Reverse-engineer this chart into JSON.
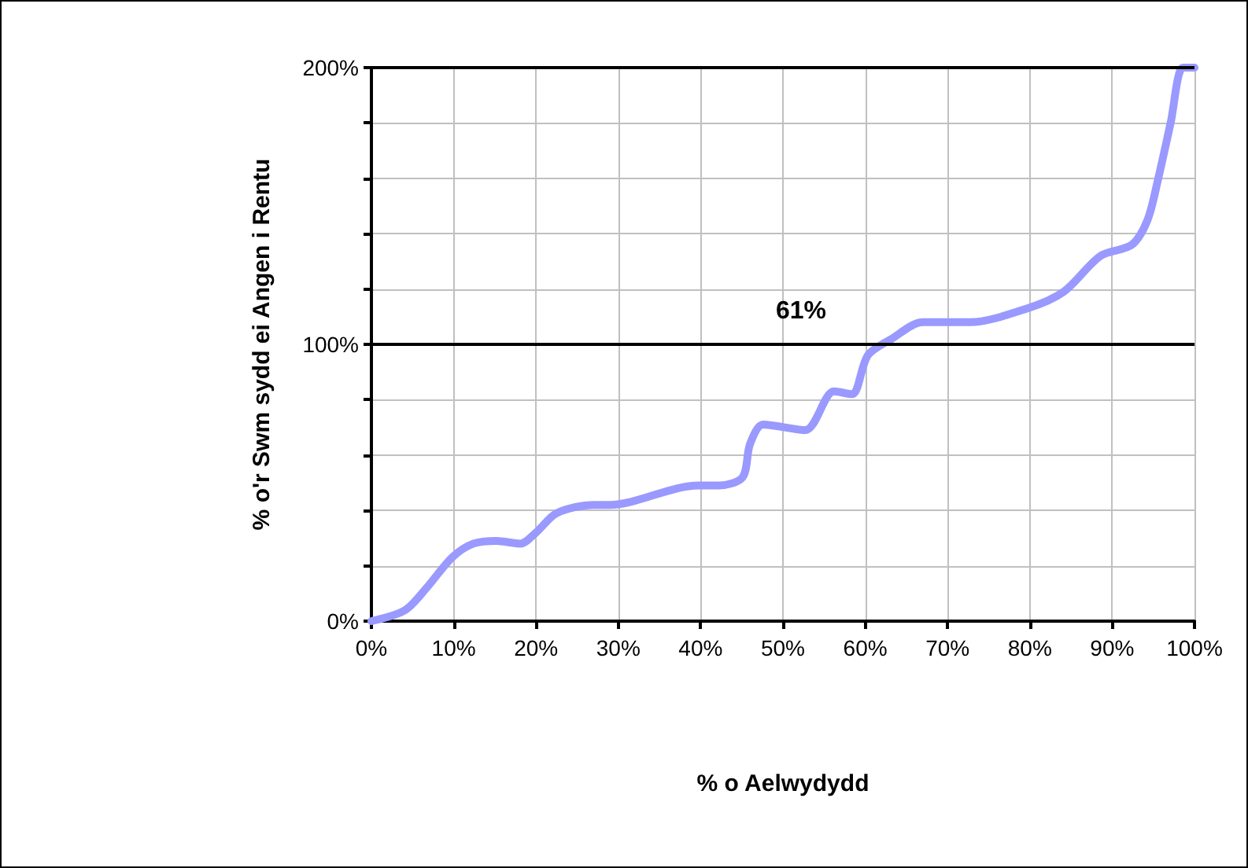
{
  "chart_data": {
    "type": "line",
    "xlabel": "% o Aelwydydd",
    "ylabel": "% o'r Swm sydd ei Angen i Rentu",
    "x": [
      0,
      4.1,
      6.7,
      9.8,
      12.4,
      15.2,
      18.1,
      20,
      22.5,
      27,
      28.9,
      39.7,
      42.2,
      45.1,
      46,
      47.6,
      52.7,
      56.2,
      58.4,
      60.3,
      63.2,
      67,
      72.7,
      79.7,
      84.1,
      88.6,
      92.4,
      94.3,
      95.6,
      97.1,
      98.6,
      100
    ],
    "series": [
      {
        "color": "#9999ff",
        "values": [
          0,
          4,
          12,
          23,
          28,
          29,
          28,
          32,
          39,
          42,
          42,
          49,
          49,
          52,
          64,
          71,
          69,
          83,
          82,
          96,
          102,
          108,
          108,
          113,
          119,
          132,
          136,
          145,
          160,
          180,
          200,
          200
        ]
      }
    ],
    "xlim": [
      0,
      100
    ],
    "ylim": [
      0,
      200
    ],
    "xticks": [
      {
        "value": 0,
        "label": "0%"
      },
      {
        "value": 10,
        "label": "10%"
      },
      {
        "value": 20,
        "label": "20%"
      },
      {
        "value": 30,
        "label": "30%"
      },
      {
        "value": 40,
        "label": "40%"
      },
      {
        "value": 50,
        "label": "50%"
      },
      {
        "value": 60,
        "label": "60%"
      },
      {
        "value": 70,
        "label": "70%"
      },
      {
        "value": 80,
        "label": "80%"
      },
      {
        "value": 90,
        "label": "90%"
      },
      {
        "value": 100,
        "label": "100%"
      }
    ],
    "yticks": [
      {
        "value": 0,
        "label": "0%"
      },
      {
        "value": 20,
        "label": null
      },
      {
        "value": 40,
        "label": null
      },
      {
        "value": 60,
        "label": null
      },
      {
        "value": 80,
        "label": null
      },
      {
        "value": 100,
        "label": "100%"
      },
      {
        "value": 120,
        "label": null
      },
      {
        "value": 140,
        "label": null
      },
      {
        "value": 160,
        "label": null
      },
      {
        "value": 180,
        "label": null
      },
      {
        "value": 200,
        "label": "200%"
      }
    ],
    "annotations": [
      "61%"
    ],
    "ref_lines": [
      {
        "axis": "y",
        "value": 100,
        "color": "#000000"
      },
      {
        "axis": "y",
        "value": 200,
        "color": "#000000"
      }
    ],
    "grid": true,
    "marker": "none",
    "line_style": "solid"
  }
}
